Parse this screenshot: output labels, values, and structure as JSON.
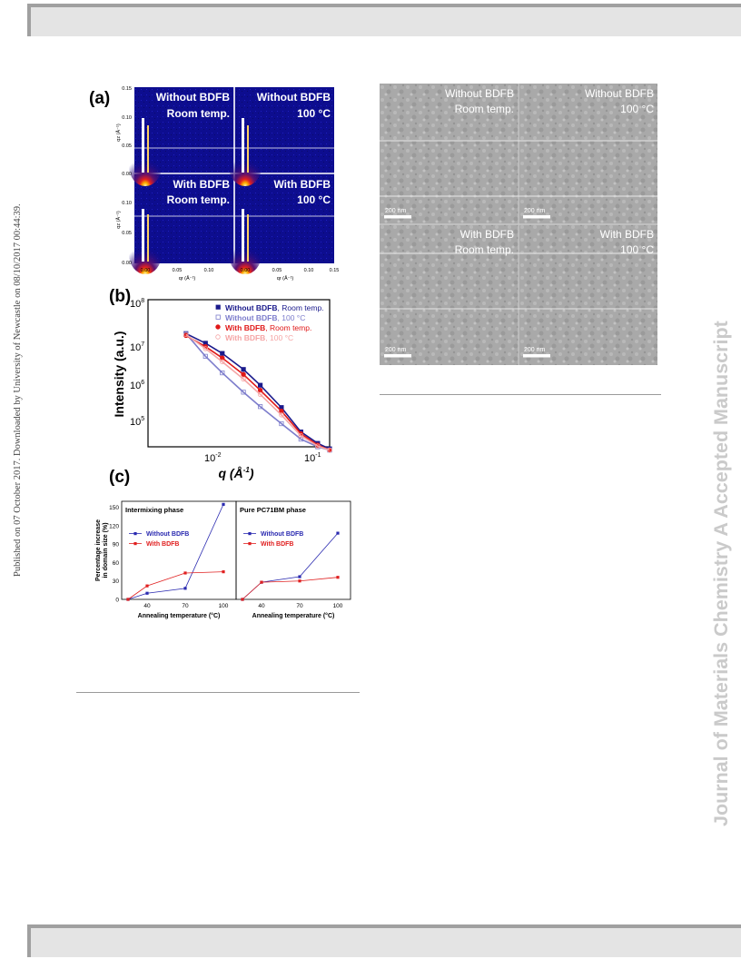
{
  "side_note": "Published on 07 October 2017. Downloaded by University of Newcastle on 08/10/2017 00:44:39.",
  "watermark": "Journal of Materials Chemistry A Accepted Manuscript",
  "figure_left": {
    "label_a": "(a)",
    "label_b": "(b)",
    "label_c": "(c)",
    "a_panels": [
      {
        "line1": "Without BDFB",
        "line2": "Room temp."
      },
      {
        "line1": "Without BDFB",
        "line2": "100 °C"
      },
      {
        "line1": "With BDFB",
        "line2": "Room temp."
      },
      {
        "line1": "With BDFB",
        "line2": "100 °C"
      }
    ],
    "a_yticks": [
      "0.15",
      "0.10",
      "0.05",
      "0.00"
    ],
    "a_xticks_left": [
      "0.00",
      "0.05",
      "0.10"
    ],
    "a_xticks_right": [
      "0.00",
      "0.05",
      "0.10",
      "0.15"
    ],
    "a_ylabel": "qz (Å⁻¹)",
    "a_xlabel": "qr (Å⁻¹)"
  },
  "chart_data": [
    {
      "type": "scatter",
      "xlabel": "q (Å-1)",
      "ylabel": "Intensity (a.u.)",
      "x_scale": "log",
      "y_scale": "log",
      "xlim": [
        0.002,
        0.16
      ],
      "ylim": [
        50000,
        120000000
      ],
      "x_tick_labels": [
        "10-2",
        "10-1"
      ],
      "y_tick_labels": [
        "108",
        "107",
        "106",
        "105"
      ],
      "legend_position": "top-right",
      "series": [
        {
          "name": "Without BDFB, Room temp.",
          "color": "#1a1a8c",
          "marker": "filled-square",
          "x": [
            0.005,
            0.008,
            0.012,
            0.02,
            0.03,
            0.05,
            0.08,
            0.12,
            0.16
          ],
          "y": [
            20000000,
            12000000,
            7000000,
            3000000,
            1300000,
            400000,
            110000,
            60000,
            45000
          ]
        },
        {
          "name": "Without BDFB, 100 °C",
          "color": "#7d7dcc",
          "marker": "open-square",
          "x": [
            0.005,
            0.008,
            0.012,
            0.02,
            0.03,
            0.05,
            0.08,
            0.12,
            0.16
          ],
          "y": [
            20000000,
            6000000,
            2500000,
            900000,
            420000,
            170000,
            75000,
            50000,
            42000
          ]
        },
        {
          "name": "With BDFB, Room temp.",
          "color": "#e01818",
          "marker": "filled-circle",
          "x": [
            0.005,
            0.008,
            0.012,
            0.02,
            0.03,
            0.05,
            0.08,
            0.12,
            0.16
          ],
          "y": [
            18000000,
            10000000,
            5500000,
            2300000,
            1000000,
            330000,
            100000,
            55000,
            42000
          ]
        },
        {
          "name": "With BDFB, 100 °C",
          "color": "#f5a5a5",
          "marker": "open-circle",
          "x": [
            0.005,
            0.008,
            0.012,
            0.02,
            0.03,
            0.05,
            0.08,
            0.12,
            0.16
          ],
          "y": [
            19000000,
            9000000,
            4500000,
            1800000,
            800000,
            270000,
            90000,
            52000,
            42000
          ]
        }
      ]
    },
    {
      "type": "line",
      "title": "Intermixing phase",
      "xlabel": "Annealing temperature (°C)",
      "ylabel": "Percentage increase in domain size (%)",
      "xlim": [
        20,
        110
      ],
      "ylim": [
        0,
        160
      ],
      "x_tick_labels": [
        "40",
        "70",
        "100"
      ],
      "y_tick_labels": [
        "0",
        "30",
        "60",
        "90",
        "120",
        "150"
      ],
      "series": [
        {
          "name": "Without BDFB",
          "color": "#2a2ab0",
          "x": [
            25,
            40,
            70,
            100
          ],
          "y": [
            0,
            10,
            18,
            155
          ]
        },
        {
          "name": "With BDFB",
          "color": "#e02020",
          "x": [
            25,
            40,
            70,
            100
          ],
          "y": [
            0,
            22,
            43,
            45
          ]
        }
      ]
    },
    {
      "type": "line",
      "title": "Pure PC71BM phase",
      "xlabel": "Annealing temperature (°C)",
      "xlim": [
        20,
        110
      ],
      "ylim": [
        0,
        160
      ],
      "x_tick_labels": [
        "40",
        "70",
        "100"
      ],
      "series": [
        {
          "name": "Without BDFB",
          "color": "#2a2ab0",
          "x": [
            25,
            40,
            70,
            100
          ],
          "y": [
            0,
            28,
            37,
            108
          ]
        },
        {
          "name": "With BDFB",
          "color": "#e02020",
          "x": [
            25,
            40,
            70,
            100
          ],
          "y": [
            0,
            28,
            30,
            36
          ]
        }
      ]
    }
  ],
  "figure_right": {
    "panels": [
      {
        "line1": "Without BDFB",
        "line2": "Room temp.",
        "scalebar": "200 nm"
      },
      {
        "line1": "Without BDFB",
        "line2": "100 °C",
        "scalebar": "200 nm"
      },
      {
        "line1": "With BDFB",
        "line2": "Room temp.",
        "scalebar": "200 nm"
      },
      {
        "line1": "With BDFB",
        "line2": "100 °C",
        "scalebar": "200 nm"
      }
    ]
  }
}
